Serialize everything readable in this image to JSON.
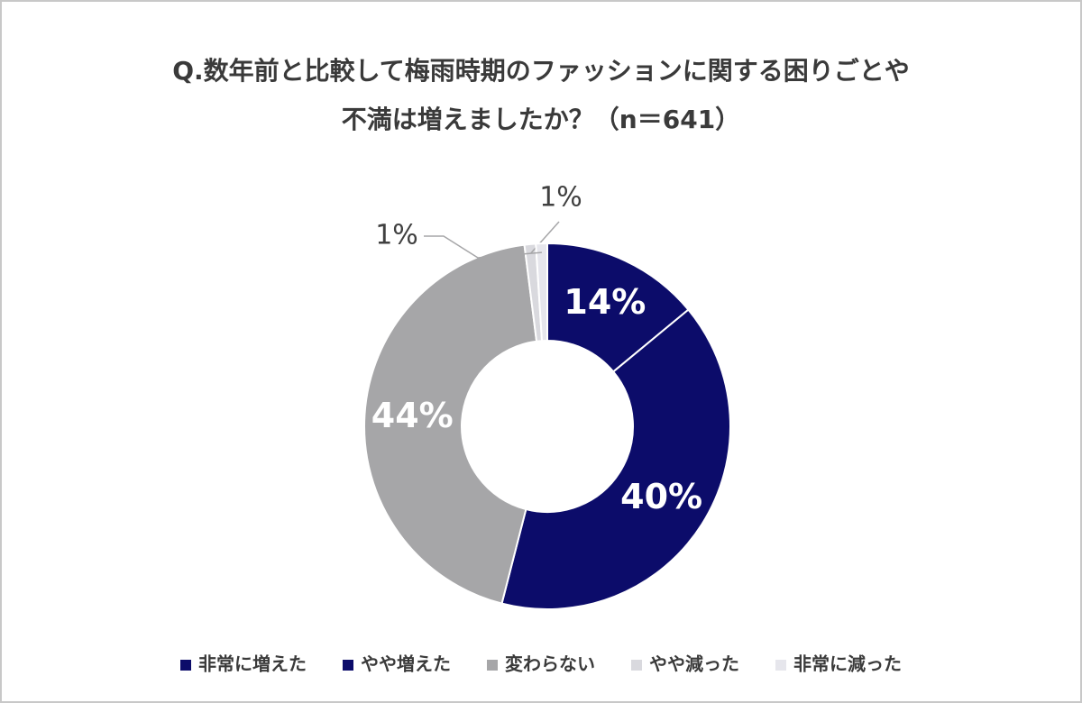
{
  "chart_data": {
    "type": "donut",
    "title": [
      "Q.数年前と比較して梅雨時期のファッションに関する困りごとや",
      "不満は増えましたか？（n＝641）"
    ],
    "categories": [
      "非常に増えた",
      "やや増えた",
      "変わらない",
      "やや減った",
      "非常に減った"
    ],
    "values": [
      14,
      40,
      44,
      1,
      1
    ],
    "value_labels": [
      "14%",
      "40%",
      "44%",
      "1%",
      "1%"
    ],
    "colors": [
      "#0c0c6a",
      "#0c0c6a",
      "#a6a6a8",
      "#d9d9de",
      "#e6e6ec"
    ],
    "legend": "bottom"
  }
}
